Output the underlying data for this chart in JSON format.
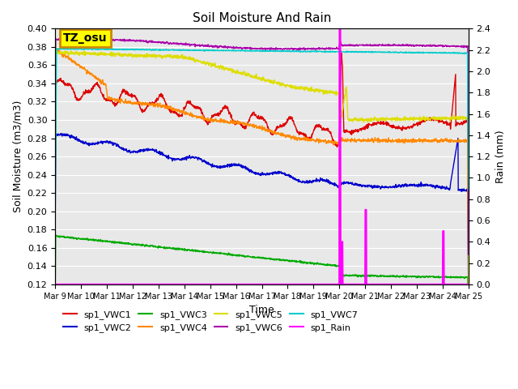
{
  "title": "Soil Moisture And Rain",
  "ylabel_left": "Soil Moisture (m3/m3)",
  "ylabel_right": "Rain (mm)",
  "xlabel": "Time",
  "ylim_left": [
    0.12,
    0.4
  ],
  "ylim_right": [
    0.0,
    2.4
  ],
  "background_color": "#e8e8e8",
  "figure_color": "#ffffff",
  "annotation_text": "TZ_osu",
  "annotation_color": "#ffff00",
  "annotation_border": "#cc8800",
  "series_colors": {
    "sp1_VWC1": "#dd0000",
    "sp1_VWC2": "#0000cc",
    "sp1_VWC3": "#00aa00",
    "sp1_VWC4": "#ff8800",
    "sp1_VWC5": "#dddd00",
    "sp1_VWC6": "#aa00aa",
    "sp1_VWC7": "#00cccc",
    "sp1_Rain": "#ff00ff"
  },
  "legend_entries": [
    "sp1_VWC1",
    "sp1_VWC2",
    "sp1_VWC3",
    "sp1_VWC4",
    "sp1_VWC5",
    "sp1_VWC6",
    "sp1_VWC7",
    "sp1_Rain"
  ],
  "legend_colors": [
    "#dd0000",
    "#0000cc",
    "#00aa00",
    "#ff8800",
    "#dddd00",
    "#aa00aa",
    "#00cccc",
    "#ff00ff"
  ]
}
